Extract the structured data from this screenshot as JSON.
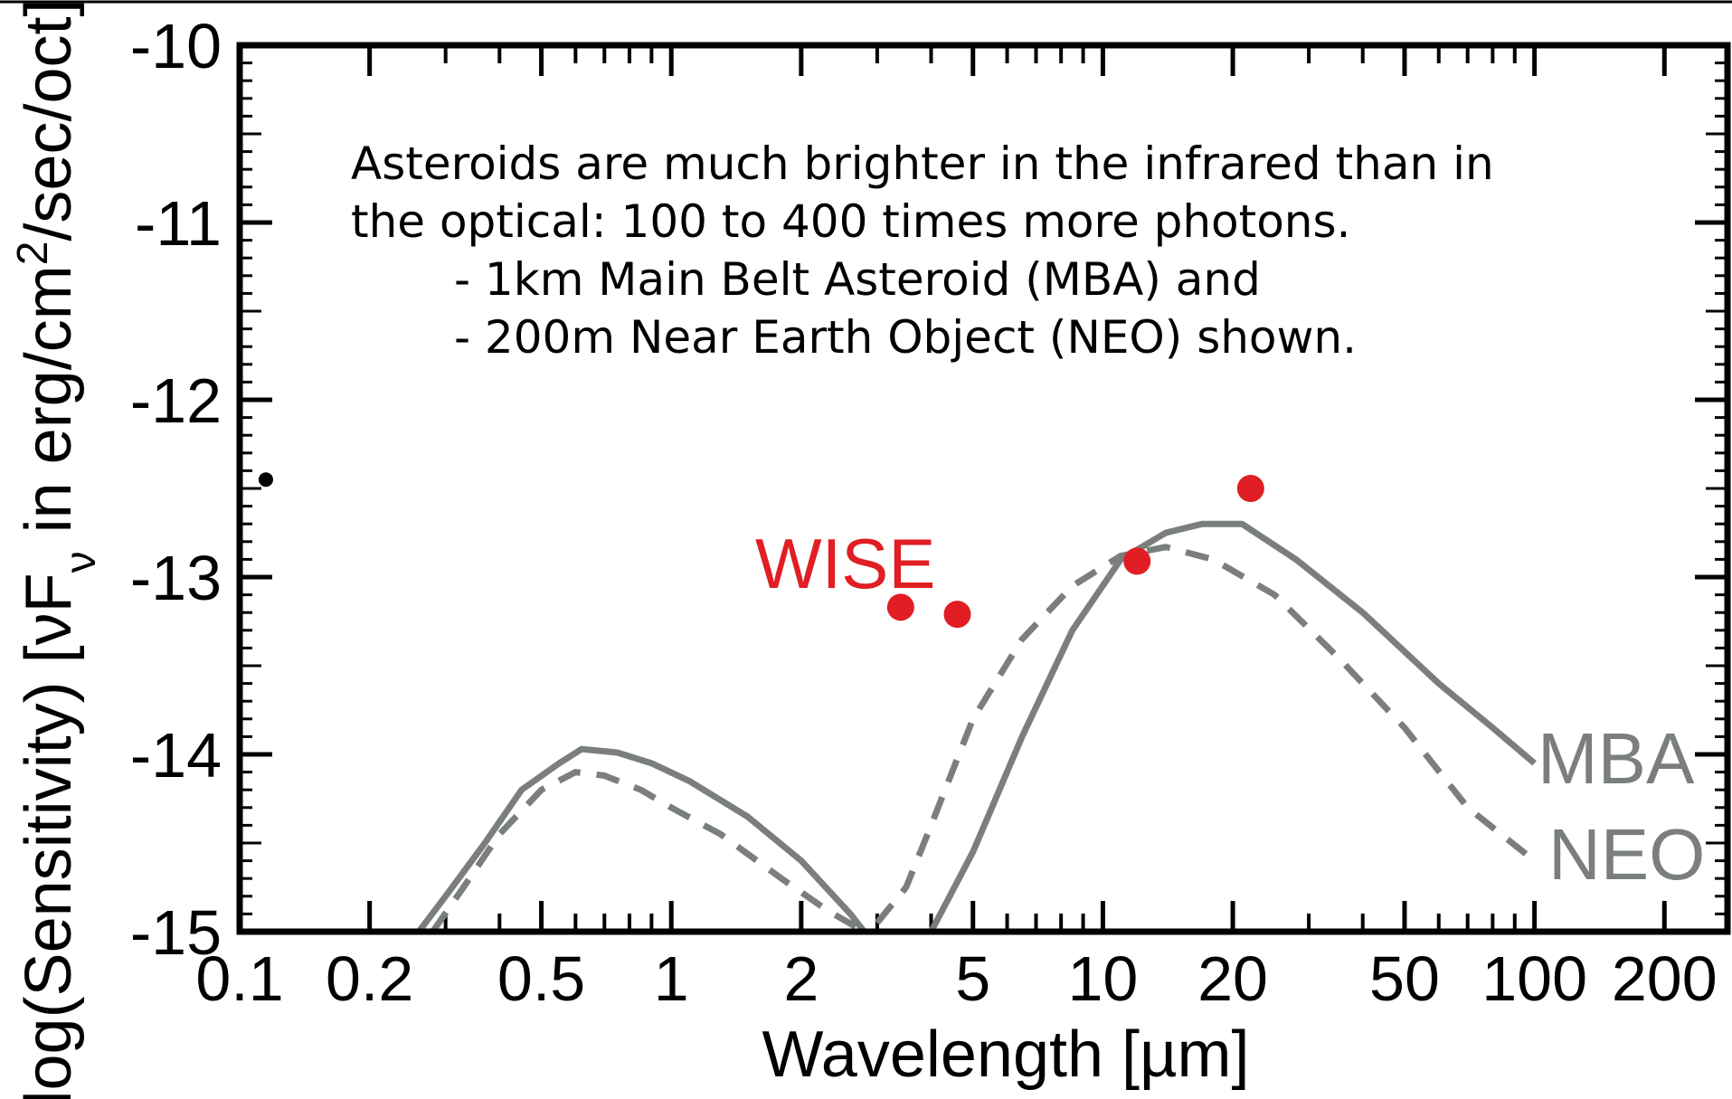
{
  "chart_data": {
    "type": "line",
    "title": "",
    "xlabel": "Wavelength  [µm]",
    "ylabel_main": "log(Sensitivity)  [νF",
    "ylabel_sub": "ν",
    "ylabel_mid": "  in erg/cm",
    "ylabel_sup": "2",
    "ylabel_end": "/sec/oct]",
    "xscale": "log",
    "xlim": [
      0.1,
      280
    ],
    "ylim": [
      -15,
      -10
    ],
    "x_ticks": [
      0.1,
      0.2,
      0.5,
      1,
      2,
      5,
      10,
      20,
      50,
      100,
      200
    ],
    "x_tick_labels": [
      "0.1",
      "0.2",
      "0.5",
      "1",
      "2",
      "5",
      "10",
      "20",
      "50",
      "100",
      "200"
    ],
    "y_ticks": [
      -10,
      -11,
      -12,
      -13,
      -14,
      -15
    ],
    "y_tick_labels": [
      "-10",
      "-11",
      "-12",
      "-13",
      "-14",
      "-15"
    ],
    "grid": false,
    "legend": "none",
    "series": [
      {
        "name": "MBA",
        "style": "solid",
        "color": "#7a7f7b",
        "x": [
          0.26,
          0.3,
          0.37,
          0.45,
          0.55,
          0.62,
          0.75,
          0.9,
          1.1,
          1.5,
          2,
          2.6,
          2.8
        ],
        "y": [
          -15.0,
          -14.8,
          -14.5,
          -14.2,
          -14.05,
          -13.97,
          -13.99,
          -14.05,
          -14.15,
          -14.35,
          -14.6,
          -14.9,
          -15.0
        ]
      },
      {
        "name": "MBA",
        "style": "solid",
        "color": "#7a7f7b",
        "x": [
          4.0,
          5.0,
          6.5,
          8.5,
          11,
          14,
          17,
          21,
          28,
          40,
          60,
          80,
          100
        ],
        "y": [
          -15.0,
          -14.55,
          -13.9,
          -13.3,
          -12.9,
          -12.75,
          -12.7,
          -12.7,
          -12.9,
          -13.2,
          -13.6,
          -13.85,
          -14.05
        ]
      },
      {
        "name": "NEO",
        "style": "dashed",
        "color": "#7a7f7b",
        "x": [
          0.28,
          0.33,
          0.4,
          0.5,
          0.6,
          0.7,
          0.85,
          1.0,
          1.3,
          1.8,
          2.3,
          2.8
        ],
        "y": [
          -15.0,
          -14.75,
          -14.45,
          -14.2,
          -14.1,
          -14.12,
          -14.2,
          -14.3,
          -14.45,
          -14.7,
          -14.88,
          -15.0
        ]
      },
      {
        "name": "NEO",
        "style": "dashed",
        "color": "#7a7f7b",
        "x": [
          3.0,
          3.5,
          4.0,
          5.0,
          6.5,
          8.5,
          11,
          14,
          18,
          25,
          35,
          50,
          70,
          100
        ],
        "y": [
          -14.95,
          -14.75,
          -14.4,
          -13.8,
          -13.35,
          -13.05,
          -12.88,
          -12.83,
          -12.9,
          -13.1,
          -13.45,
          -13.85,
          -14.3,
          -14.6
        ]
      }
    ],
    "points": [
      {
        "name": "WISE",
        "color": "#e01e24",
        "x": [
          3.4,
          4.6,
          12,
          22
        ],
        "y": [
          -13.17,
          -13.21,
          -12.91,
          -12.5
        ]
      },
      {
        "name": "",
        "color": "#000000",
        "x": [
          0.115
        ],
        "y": [
          -12.45
        ]
      }
    ],
    "labels": {
      "wise": "WISE",
      "mba": "MBA",
      "neo": "NEO"
    },
    "annotation": {
      "line1": "Asteroids are much brighter in the infrared than in",
      "line2": "the optical: 100 to 400 times more photons.",
      "line3": "- 1km Main Belt Asteroid (MBA) and",
      "line4": "- 200m Near Earth Object (NEO) shown."
    }
  }
}
